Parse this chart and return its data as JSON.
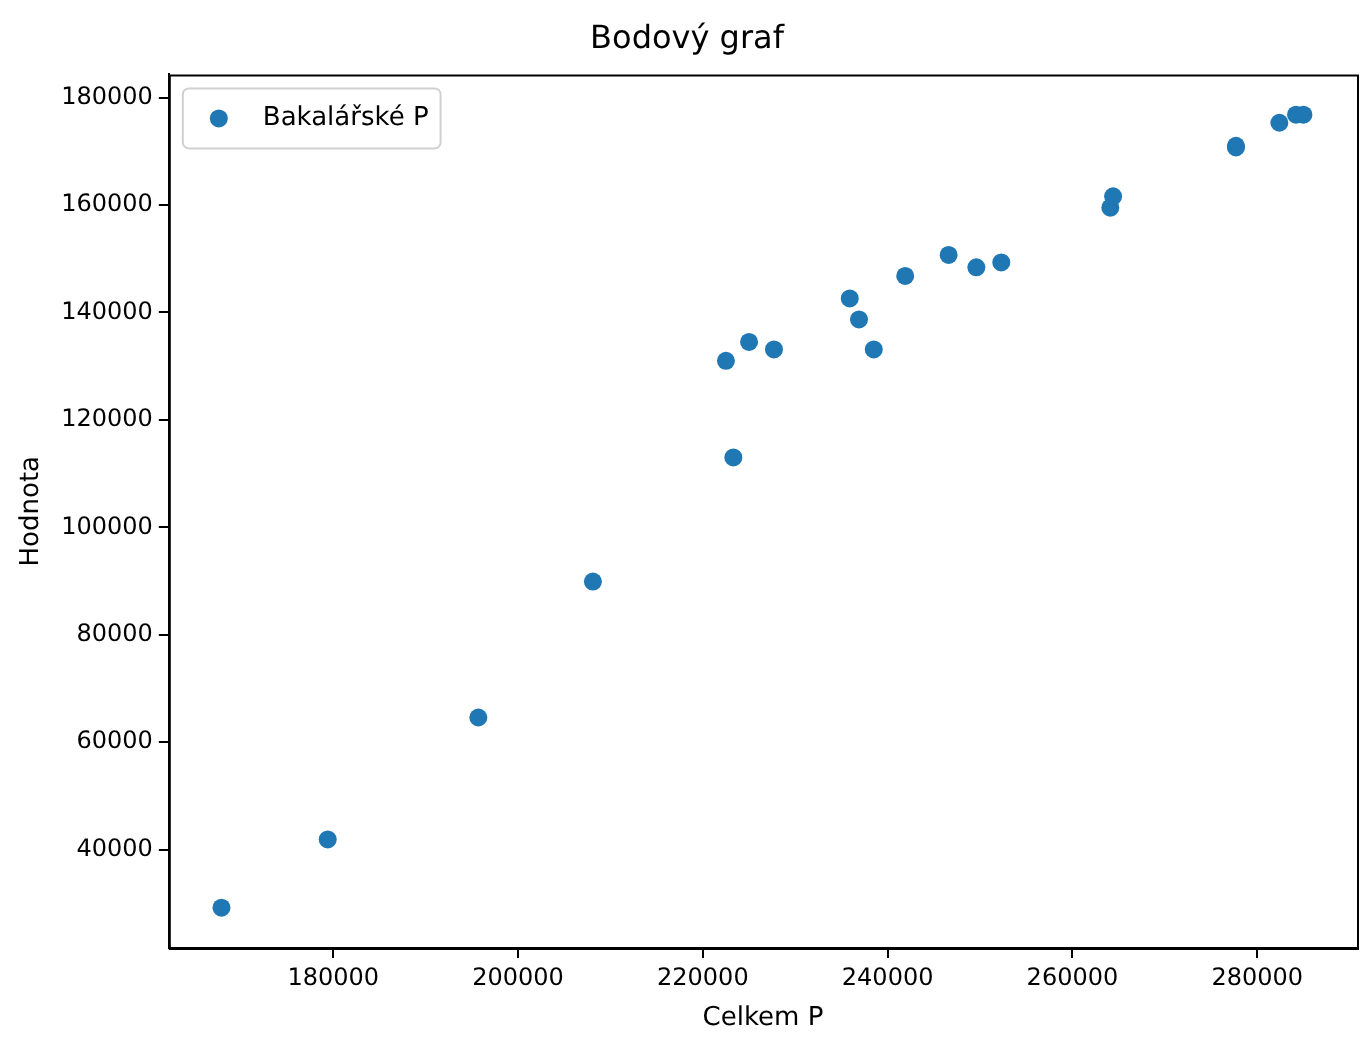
{
  "chart_data": {
    "type": "scatter",
    "title": "Bodový graf",
    "xlabel": "Celkem P",
    "ylabel": "Hodnota",
    "x": [
      167900,
      179400,
      195700,
      208100,
      222500,
      223300,
      225000,
      227700,
      235900,
      236900,
      238500,
      241900,
      246600,
      249600,
      252300,
      264100,
      264400,
      277700,
      277700,
      282400,
      284200,
      285000
    ],
    "series": [
      {
        "name": "Bakalářské P",
        "color": "#1f77b4",
        "values": [
          29200,
          41900,
          64600,
          89900,
          131000,
          113000,
          134500,
          133100,
          142600,
          138700,
          133100,
          146800,
          150700,
          148400,
          149300,
          159500,
          161600,
          171000,
          170700,
          175300,
          176800,
          176800
        ]
      }
    ],
    "xlim": [
      162200,
      290800
    ],
    "ylim": [
      21700,
      184300
    ],
    "xticks": [
      180000,
      200000,
      220000,
      240000,
      260000,
      280000
    ],
    "yticks": [
      40000,
      60000,
      80000,
      100000,
      120000,
      140000,
      160000,
      180000
    ],
    "grid": false,
    "legend": "top left",
    "marker": "circle"
  }
}
